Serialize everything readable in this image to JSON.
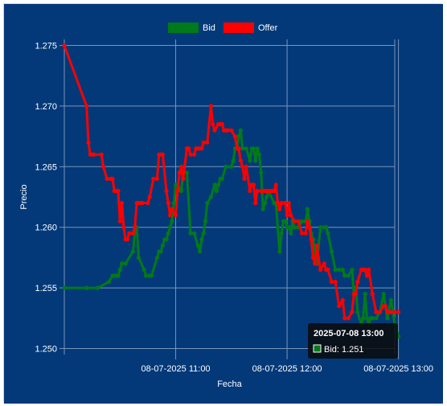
{
  "colors": {
    "background": "#033979",
    "grid": "#7a93b8",
    "bid": "#007a1a",
    "offer": "#ff0000",
    "tooltip_bg": "#0a0a0a"
  },
  "legend": {
    "position": "top-center"
  },
  "tooltip": {
    "title": "2025-07-08 13:00",
    "body": "Bid: 1.251"
  },
  "chart_data": {
    "type": "line",
    "xlabel": "Fecha",
    "ylabel": "Precio",
    "x_ticks": [
      "08-07-2025 11:00",
      "08-07-2025 12:00",
      "08-07-2025 13:00"
    ],
    "y_ticks": [
      "1.250",
      "1.255",
      "1.260",
      "1.265",
      "1.270",
      "1.275"
    ],
    "ylim": [
      1.2495,
      1.2755
    ],
    "xlim_minutes_after_10h": [
      0,
      178
    ],
    "grid": true,
    "series": [
      {
        "name": "Bid",
        "x": [
          "10:00",
          "10:12",
          "10:18",
          "10:24",
          "10:26",
          "10:27",
          "10:28",
          "10:29",
          "10:30",
          "10:31",
          "10:33",
          "10:37",
          "10:38",
          "10:39",
          "10:40",
          "10:43",
          "10:44",
          "10:46",
          "10:47",
          "10:50",
          "10:51",
          "10:52",
          "10:53",
          "10:54",
          "10:55",
          "10:56",
          "10:57",
          "10:58",
          "10:59",
          "11:00",
          "11:01",
          "11:03",
          "11:04",
          "11:06",
          "11:08",
          "11:10",
          "11:12",
          "11:13",
          "11:14",
          "11:15",
          "11:16",
          "11:17",
          "11:19",
          "11:21",
          "11:22",
          "11:23",
          "11:24",
          "11:25",
          "11:27",
          "11:30",
          "11:31",
          "11:32",
          "11:33",
          "11:34",
          "11:35",
          "11:36",
          "11:38",
          "11:40",
          "11:41",
          "11:42",
          "11:43",
          "11:44",
          "11:45",
          "11:46",
          "11:47",
          "11:48",
          "11:49",
          "11:50",
          "11:53",
          "11:54",
          "11:55",
          "11:56",
          "11:57",
          "11:58",
          "11:59",
          "12:00",
          "12:01",
          "12:02",
          "12:03",
          "12:04",
          "12:06",
          "12:08",
          "12:10",
          "12:11",
          "12:12",
          "12:13",
          "12:14",
          "12:16",
          "12:18",
          "12:20",
          "12:21",
          "12:22",
          "12:24",
          "12:26",
          "12:28",
          "12:30",
          "12:31",
          "12:33",
          "12:35",
          "12:36",
          "12:37",
          "12:38",
          "12:40",
          "12:41",
          "12:42",
          "12:43",
          "12:44",
          "12:45",
          "12:46",
          "12:48",
          "12:50",
          "12:52",
          "12:54",
          "12:56",
          "12:58",
          "13:00"
        ],
        "values": [
          1.255,
          1.255,
          1.255,
          1.2555,
          1.256,
          1.256,
          1.256,
          1.256,
          1.2565,
          1.257,
          1.257,
          1.258,
          1.2595,
          1.26,
          1.2575,
          1.2565,
          1.256,
          1.256,
          1.256,
          1.2575,
          1.258,
          1.258,
          1.2585,
          1.259,
          1.259,
          1.2595,
          1.26,
          1.2605,
          1.262,
          1.2635,
          1.2635,
          1.263,
          1.2645,
          1.2645,
          1.2595,
          1.2595,
          1.2585,
          1.258,
          1.259,
          1.2595,
          1.2605,
          1.262,
          1.2625,
          1.2635,
          1.263,
          1.2635,
          1.264,
          1.264,
          1.265,
          1.265,
          1.2655,
          1.2665,
          1.2665,
          1.2675,
          1.268,
          1.2665,
          1.2665,
          1.2655,
          1.2665,
          1.2665,
          1.2655,
          1.2665,
          1.266,
          1.2645,
          1.2615,
          1.262,
          1.2625,
          1.263,
          1.262,
          1.262,
          1.26,
          1.258,
          1.2595,
          1.2605,
          1.2605,
          1.26,
          1.26,
          1.2595,
          1.2605,
          1.26,
          1.26,
          1.2605,
          1.2605,
          1.2615,
          1.2605,
          1.2595,
          1.259,
          1.257,
          1.26,
          1.26,
          1.26,
          1.2595,
          1.258,
          1.2565,
          1.2565,
          1.2565,
          1.256,
          1.256,
          1.2565,
          1.2545,
          1.255,
          1.253,
          1.252,
          1.2525,
          1.2545,
          1.2525,
          1.252,
          1.2525,
          1.2525,
          1.2525,
          1.253,
          1.2545,
          1.2525,
          1.254,
          1.252,
          1.251
        ]
      },
      {
        "name": "Offer",
        "x": [
          "10:00",
          "10:12",
          "10:13",
          "10:14",
          "10:15",
          "10:16",
          "10:20",
          "10:21",
          "10:23",
          "10:25",
          "10:26",
          "10:27",
          "10:28",
          "10:29",
          "10:30",
          "10:31",
          "10:32",
          "10:33",
          "10:34",
          "10:35",
          "10:37",
          "10:38",
          "10:39",
          "10:40",
          "10:41",
          "10:42",
          "10:45",
          "10:46",
          "10:48",
          "10:50",
          "10:51",
          "10:52",
          "10:53",
          "10:55",
          "10:56",
          "10:57",
          "10:58",
          "11:00",
          "11:01",
          "11:02",
          "11:03",
          "11:04",
          "11:06",
          "11:07",
          "11:08",
          "11:10",
          "11:11",
          "11:12",
          "11:13",
          "11:14",
          "11:15",
          "11:17",
          "11:19",
          "11:20",
          "11:21",
          "11:23",
          "11:24",
          "11:25",
          "11:26",
          "11:27",
          "11:28",
          "11:30",
          "11:32",
          "11:33",
          "11:34",
          "11:35",
          "11:36",
          "11:37",
          "11:38",
          "11:40",
          "11:41",
          "11:42",
          "11:43",
          "11:44",
          "11:46",
          "11:47",
          "11:48",
          "11:49",
          "11:50",
          "11:51",
          "11:52",
          "11:53",
          "11:54",
          "11:55",
          "11:56",
          "11:57",
          "11:59",
          "12:00",
          "12:01",
          "12:02",
          "12:04",
          "12:06",
          "12:08",
          "12:10",
          "12:11",
          "12:12",
          "12:13",
          "12:14",
          "12:15",
          "12:16",
          "12:18",
          "12:20",
          "12:21",
          "12:22",
          "12:24",
          "12:26",
          "12:28",
          "12:30",
          "12:31",
          "12:33",
          "12:35",
          "12:36",
          "12:37",
          "12:38",
          "12:40",
          "12:41",
          "12:42",
          "12:43",
          "12:44",
          "12:46",
          "12:48",
          "12:50",
          "12:52",
          "12:53",
          "12:54",
          "12:55",
          "12:56",
          "12:58",
          "13:00"
        ],
        "values": [
          1.275,
          1.27,
          1.267,
          1.266,
          1.266,
          1.266,
          1.266,
          1.265,
          1.264,
          1.264,
          1.264,
          1.263,
          1.263,
          1.263,
          1.2605,
          1.262,
          1.26,
          1.259,
          1.259,
          1.2595,
          1.2595,
          1.26,
          1.262,
          1.262,
          1.262,
          1.262,
          1.262,
          1.2625,
          1.264,
          1.264,
          1.266,
          1.266,
          1.266,
          1.263,
          1.262,
          1.261,
          1.2615,
          1.261,
          1.263,
          1.2645,
          1.265,
          1.264,
          1.2665,
          1.2665,
          1.266,
          1.266,
          1.2665,
          1.2665,
          1.2665,
          1.2665,
          1.267,
          1.267,
          1.27,
          1.2685,
          1.268,
          1.2685,
          1.2685,
          1.2685,
          1.268,
          1.268,
          1.268,
          1.268,
          1.2675,
          1.2665,
          1.2665,
          1.2655,
          1.265,
          1.264,
          1.265,
          1.263,
          1.2635,
          1.2635,
          1.262,
          1.263,
          1.263,
          1.263,
          1.263,
          1.263,
          1.263,
          1.263,
          1.263,
          1.263,
          1.2635,
          1.262,
          1.2615,
          1.262,
          1.262,
          1.261,
          1.262,
          1.261,
          1.2605,
          1.2605,
          1.2595,
          1.2595,
          1.2605,
          1.26,
          1.259,
          1.2575,
          1.257,
          1.2585,
          1.2565,
          1.257,
          1.2565,
          1.2565,
          1.2555,
          1.2555,
          1.2535,
          1.254,
          1.2525,
          1.2525,
          1.253,
          1.2545,
          1.2545,
          1.2555,
          1.2565,
          1.2565,
          1.2565,
          1.256,
          1.2565,
          1.2545,
          1.253,
          1.253,
          1.2535,
          1.2535,
          1.253,
          1.253,
          1.253,
          1.253,
          1.253
        ]
      }
    ]
  }
}
